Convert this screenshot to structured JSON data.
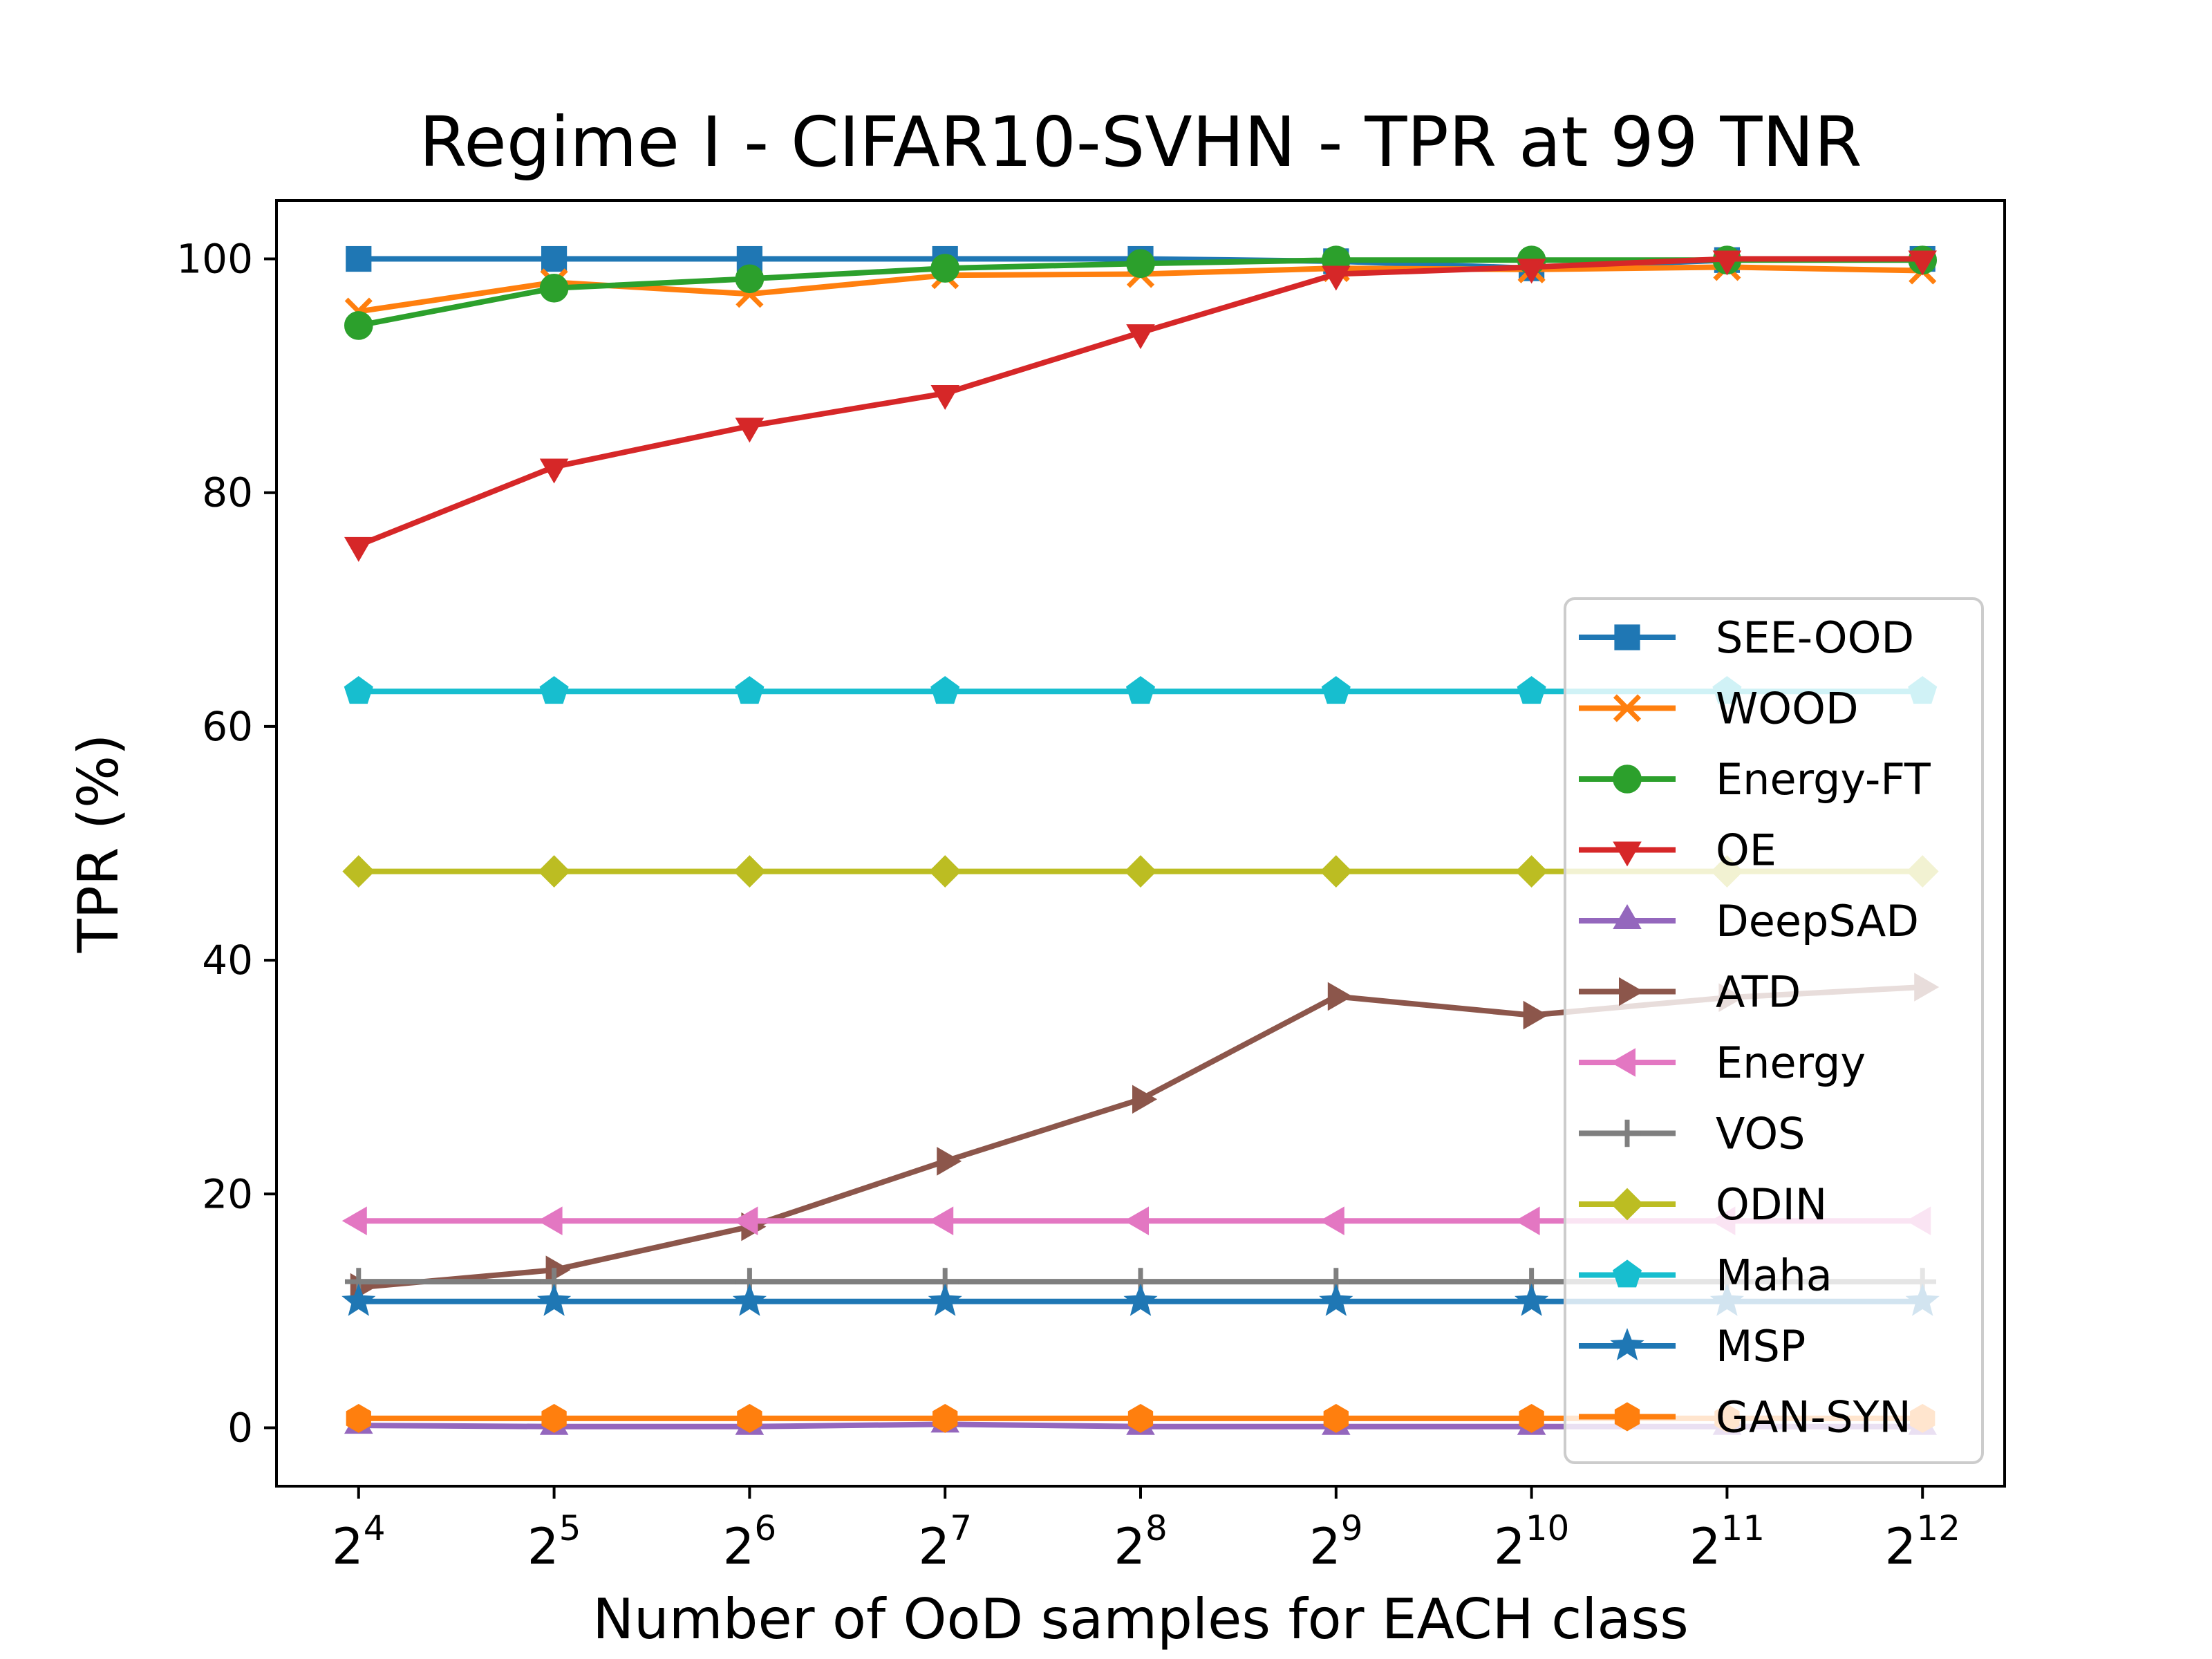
{
  "chart_data": {
    "type": "line",
    "title": "Regime I - CIFAR10-SVHN - TPR at 99 TNR",
    "xlabel": "Number of OoD samples for EACH class",
    "ylabel": "TPR (%)",
    "x": [
      4,
      5,
      6,
      7,
      8,
      9,
      10,
      11,
      12
    ],
    "x_tick_labels": [
      {
        "base": "2",
        "exp": "4"
      },
      {
        "base": "2",
        "exp": "5"
      },
      {
        "base": "2",
        "exp": "6"
      },
      {
        "base": "2",
        "exp": "7"
      },
      {
        "base": "2",
        "exp": "8"
      },
      {
        "base": "2",
        "exp": "9"
      },
      {
        "base": "2",
        "exp": "10"
      },
      {
        "base": "2",
        "exp": "11"
      },
      {
        "base": "2",
        "exp": "12"
      }
    ],
    "x_scale": "log2",
    "xlim": [
      3.58,
      12.42
    ],
    "ylim": [
      -5,
      105
    ],
    "y_ticks": [
      0,
      20,
      40,
      60,
      80,
      100
    ],
    "grid": false,
    "legend_position": "lower-right",
    "series": [
      {
        "name": "SEE-OOD",
        "color": "#1f77b4",
        "marker": "square",
        "values": [
          100,
          100,
          100,
          100,
          100,
          99.8,
          99.2,
          99.9,
          100
        ]
      },
      {
        "name": "WOOD",
        "color": "#ff7f0e",
        "marker": "x",
        "values": [
          95.5,
          98,
          97,
          98.6,
          98.7,
          99.2,
          99.1,
          99.3,
          99
        ]
      },
      {
        "name": "Energy-FT",
        "color": "#2ca02c",
        "marker": "circle",
        "values": [
          94.3,
          97.5,
          98.3,
          99.2,
          99.6,
          99.9,
          99.9,
          99.9,
          99.9
        ]
      },
      {
        "name": "OE",
        "color": "#d62728",
        "marker": "triangle-down",
        "values": [
          75.5,
          82.2,
          85.7,
          88.5,
          93.7,
          98.7,
          99.3,
          100,
          100
        ]
      },
      {
        "name": "DeepSAD",
        "color": "#9467bd",
        "marker": "triangle-up",
        "values": [
          0.2,
          0.1,
          0.1,
          0.3,
          0.1,
          0.1,
          0.1,
          0.1,
          0.1
        ]
      },
      {
        "name": "ATD",
        "color": "#8c564b",
        "marker": "triangle-right",
        "values": [
          12,
          13.5,
          17.2,
          22.8,
          28.1,
          36.9,
          35.3,
          36.8,
          37.7
        ]
      },
      {
        "name": "Energy",
        "color": "#e377c2",
        "marker": "triangle-left",
        "values": [
          17.7,
          17.7,
          17.7,
          17.7,
          17.7,
          17.7,
          17.7,
          17.7,
          17.7
        ]
      },
      {
        "name": "VOS",
        "color": "#7f7f7f",
        "marker": "plus",
        "values": [
          12.5,
          12.5,
          12.5,
          12.5,
          12.5,
          12.5,
          12.5,
          12.5,
          12.5
        ]
      },
      {
        "name": "ODIN",
        "color": "#bcbd22",
        "marker": "diamond",
        "values": [
          47.6,
          47.6,
          47.6,
          47.6,
          47.6,
          47.6,
          47.6,
          47.6,
          47.6
        ]
      },
      {
        "name": "Maha",
        "color": "#17becf",
        "marker": "pentagon",
        "values": [
          63,
          63,
          63,
          63,
          63,
          63,
          63,
          63,
          63
        ]
      },
      {
        "name": "MSP",
        "color": "#1f77b4",
        "marker": "star",
        "values": [
          10.8,
          10.8,
          10.8,
          10.8,
          10.8,
          10.8,
          10.8,
          10.8,
          10.8
        ]
      },
      {
        "name": "GAN-SYN",
        "color": "#ff7f0e",
        "marker": "hexagon",
        "values": [
          0.8,
          0.8,
          0.8,
          0.8,
          0.8,
          0.8,
          0.8,
          0.8,
          0.8
        ]
      }
    ]
  }
}
